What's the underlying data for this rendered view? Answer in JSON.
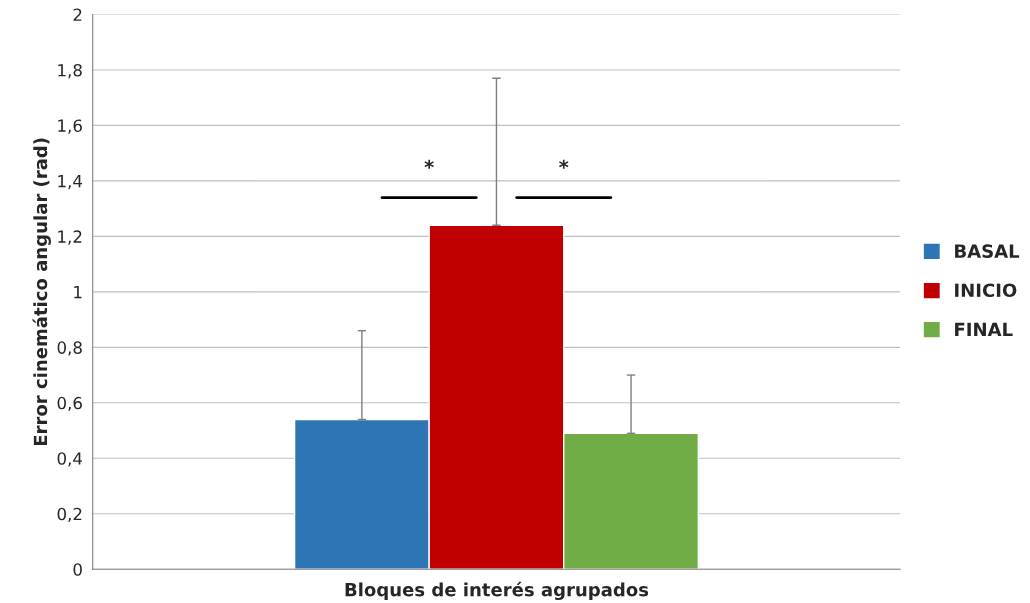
{
  "chart_data": {
    "type": "bar",
    "xlabel": "Bloques de interés agrupados",
    "ylabel": "Error cinemático angular (rad)",
    "categories": [
      null
    ],
    "series": [
      {
        "name": "BASAL",
        "color": "#2e75b6",
        "values": [
          0.54
        ],
        "errors": [
          [
            0.54,
            0.86
          ]
        ]
      },
      {
        "name": "INICIO",
        "color": "#c00000",
        "values": [
          1.24
        ],
        "errors": [
          [
            1.24,
            1.77
          ]
        ]
      },
      {
        "name": "FINAL",
        "color": "#70ad47",
        "values": [
          0.49
        ],
        "errors": [
          [
            0.49,
            0.7
          ]
        ]
      }
    ],
    "ylim": [
      0,
      2
    ],
    "yticks": [
      0,
      {
        "value": 0.2,
        "label": "0,2"
      },
      {
        "value": 0.4,
        "label": "0,4"
      },
      {
        "value": 0.6,
        "label": "0,6"
      },
      {
        "value": 0.8,
        "label": "0,8"
      },
      1,
      {
        "value": 1.2,
        "label": "1,2"
      },
      {
        "value": 1.4,
        "label": "1,4"
      },
      {
        "value": 1.6,
        "label": "1,6"
      },
      {
        "value": 1.8,
        "label": "1,8"
      },
      2
    ],
    "grid": "y",
    "legend": "right",
    "annotations": [
      "*",
      "*"
    ]
  }
}
